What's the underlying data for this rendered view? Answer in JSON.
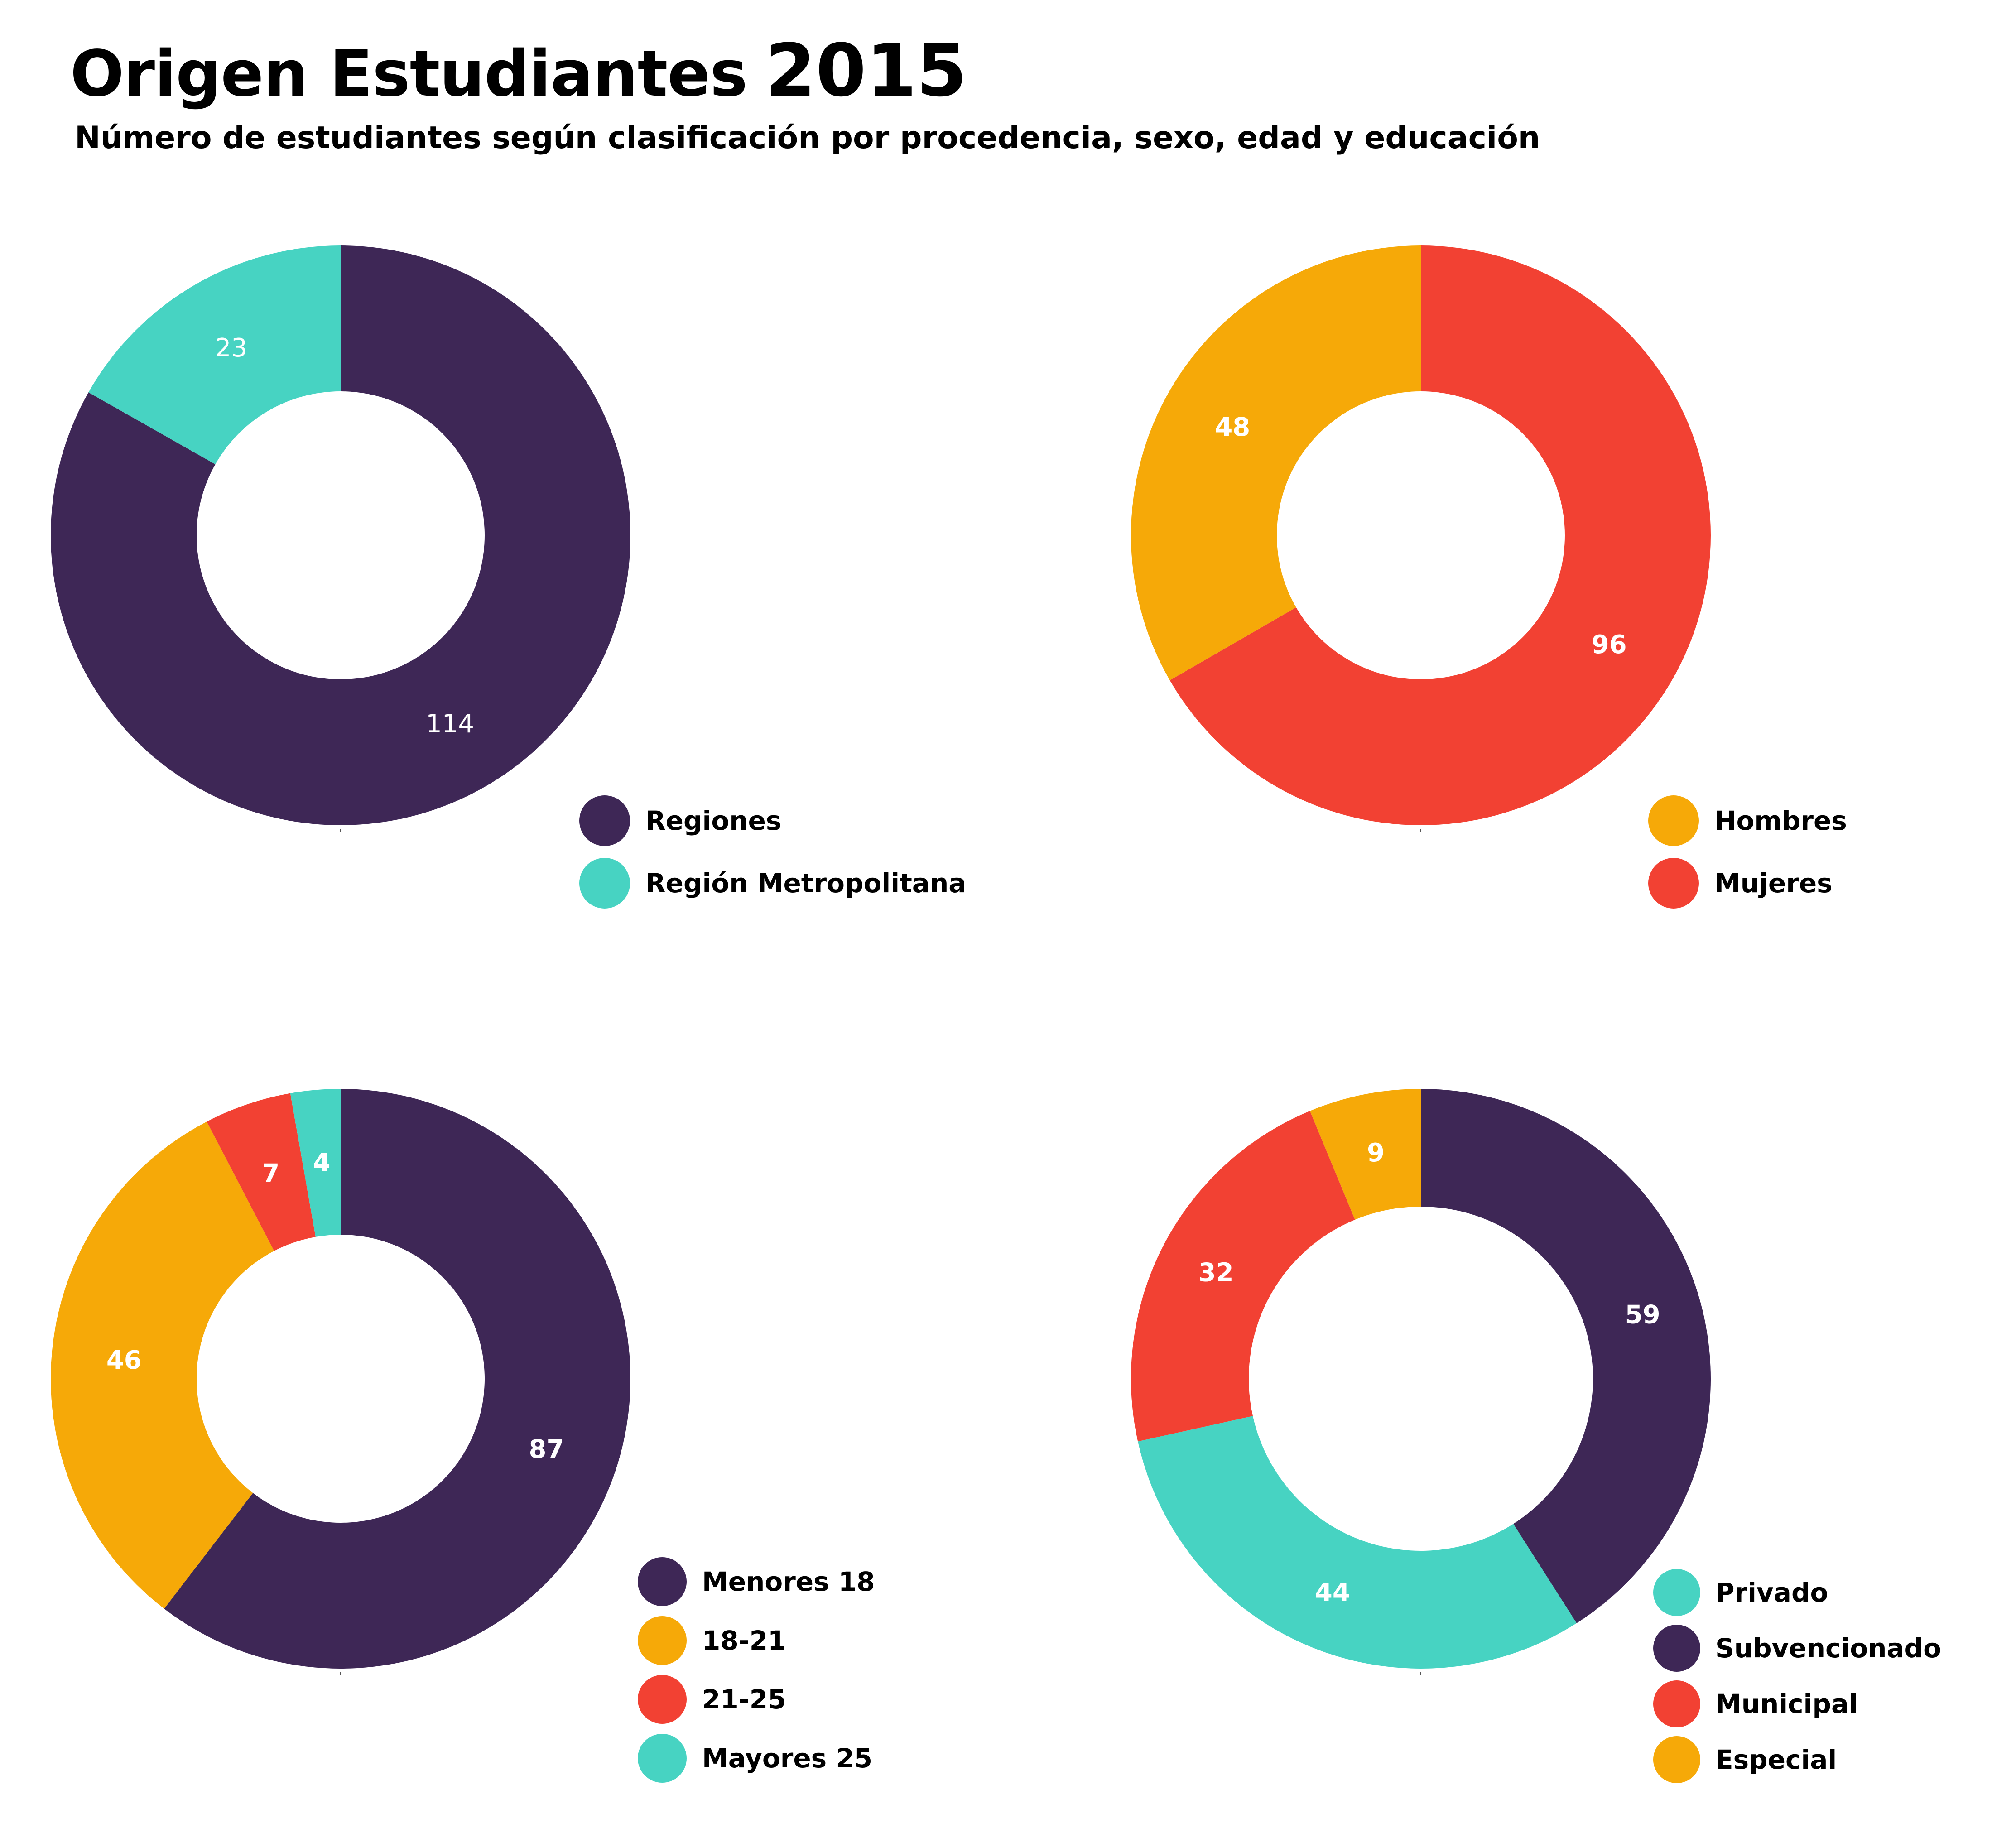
{
  "header": {
    "title": "Origen Estudiantes",
    "year": "2015",
    "subtitle": "Número de estudiantes según clasificación por procedencia, sexo, edad y educación"
  },
  "colors": {
    "purple": "#3e2756",
    "teal": "#47d3c2",
    "orange": "#f6a908",
    "red": "#f24133"
  },
  "chart_data": [
    {
      "type": "pie",
      "name": "procedencia",
      "donut": true,
      "slices": [
        {
          "label": "Regiones",
          "value": 114,
          "color": "#3e2756"
        },
        {
          "label": "Región Metropolitana",
          "value": 23,
          "color": "#47d3c2"
        }
      ],
      "legend": [
        "Regiones",
        "Región Metropolitana"
      ],
      "legend_colors": [
        "#3e2756",
        "#47d3c2"
      ],
      "legend_placement": "bottom-right"
    },
    {
      "type": "pie",
      "name": "sexo",
      "donut": true,
      "slices": [
        {
          "label": "Mujeres",
          "value": 96,
          "color": "#f24133"
        },
        {
          "label": "Hombres",
          "value": 48,
          "color": "#f6a908"
        }
      ],
      "legend": [
        "Hombres",
        "Mujeres"
      ],
      "legend_colors": [
        "#f6a908",
        "#f24133"
      ],
      "legend_placement": "bottom-right"
    },
    {
      "type": "pie",
      "name": "edad",
      "donut": true,
      "slices": [
        {
          "label": "Menores 18",
          "value": 87,
          "color": "#3e2756"
        },
        {
          "label": "18-21",
          "value": 46,
          "color": "#f6a908"
        },
        {
          "label": "21-25",
          "value": 7,
          "color": "#f24133"
        },
        {
          "label": "Mayores 25",
          "value": 4,
          "color": "#47d3c2"
        }
      ],
      "legend": [
        "Menores 18",
        "18-21",
        "21-25",
        "Mayores 25"
      ],
      "legend_colors": [
        "#3e2756",
        "#f6a908",
        "#f24133",
        "#47d3c2"
      ],
      "legend_placement": "bottom-right"
    },
    {
      "type": "pie",
      "name": "educacion",
      "donut": true,
      "slices": [
        {
          "label": "Subvencionado",
          "value": 59,
          "color": "#3e2756"
        },
        {
          "label": "Privado",
          "value": 44,
          "color": "#47d3c2"
        },
        {
          "label": "Municipal",
          "value": 32,
          "color": "#f24133"
        },
        {
          "label": "Especial",
          "value": 9,
          "color": "#f6a908"
        }
      ],
      "legend": [
        "Privado",
        "Subvencionado",
        "Municipal",
        "Especial"
      ],
      "legend_colors": [
        "#47d3c2",
        "#3e2756",
        "#f24133",
        "#f6a908"
      ],
      "legend_placement": "bottom-right"
    }
  ]
}
